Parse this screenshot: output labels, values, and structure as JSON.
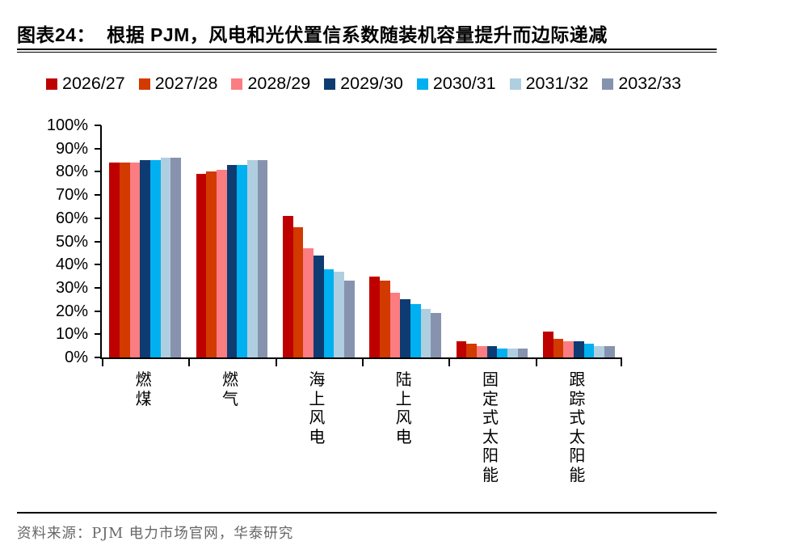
{
  "header": {
    "figure_label": "图表24：",
    "title": "根据 PJM，风电和光伏置信系数随装机容量提升而边际递减"
  },
  "footer": {
    "source": "资料来源：PJM 电力市场官网，华泰研究"
  },
  "chart_data": {
    "type": "bar",
    "title": "根据 PJM，风电和光伏置信系数随装机容量提升而边际递减",
    "categories": [
      "燃煤",
      "燃气",
      "海上风电",
      "陆上风电",
      "固定式太阳能",
      "跟踪式太阳能"
    ],
    "series": [
      {
        "name": "2026/27",
        "color": "#BF0000",
        "values": [
          84,
          79,
          61,
          35,
          7,
          11
        ]
      },
      {
        "name": "2027/28",
        "color": "#D23A00",
        "values": [
          84,
          80,
          56,
          33,
          6,
          8
        ]
      },
      {
        "name": "2028/29",
        "color": "#FB7D81",
        "values": [
          84,
          81,
          47,
          28,
          5,
          7
        ]
      },
      {
        "name": "2029/30",
        "color": "#0E3B72",
        "values": [
          85,
          83,
          44,
          25,
          5,
          7
        ]
      },
      {
        "name": "2030/31",
        "color": "#00B0F0",
        "values": [
          85,
          83,
          38,
          23,
          4,
          6
        ]
      },
      {
        "name": "2031/32",
        "color": "#AFCFE0",
        "values": [
          86,
          85,
          37,
          21,
          4,
          5
        ]
      },
      {
        "name": "2032/33",
        "color": "#8793AE",
        "values": [
          86,
          85,
          33,
          19,
          4,
          5
        ]
      }
    ],
    "unit": "%",
    "ylim": [
      0,
      100
    ],
    "yticks": [
      "100%",
      "90%",
      "80%",
      "70%",
      "60%",
      "50%",
      "40%",
      "30%",
      "20%",
      "10%",
      "0%"
    ],
    "ytick_step": 10,
    "grid": false,
    "legend_position": "top"
  }
}
